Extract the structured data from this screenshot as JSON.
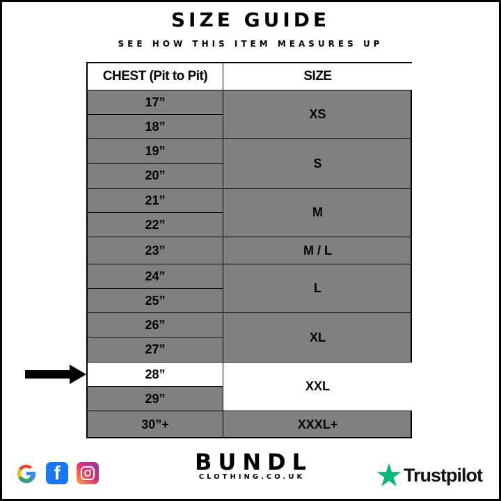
{
  "header": {
    "title": "SIZE GUIDE",
    "subtitle": "SEE HOW THIS ITEM MEASURES UP"
  },
  "table": {
    "columns": [
      "CHEST (Pit to Pit)",
      "SIZE"
    ],
    "chest": [
      "17”",
      "18”",
      "19”",
      "20”",
      "21”",
      "22”",
      "23”",
      "24”",
      "25”",
      "26”",
      "27”",
      "28”",
      "29”",
      "30”+"
    ],
    "sizes": [
      {
        "label": "XS",
        "rows": [
          0,
          1
        ]
      },
      {
        "label": "S",
        "rows": [
          2,
          3
        ]
      },
      {
        "label": "M",
        "rows": [
          4,
          5
        ]
      },
      {
        "label": "M / L",
        "rows": [
          6,
          6
        ]
      },
      {
        "label": "L",
        "rows": [
          7,
          8
        ]
      },
      {
        "label": "XL",
        "rows": [
          9,
          10
        ]
      },
      {
        "label": "XXL",
        "rows": [
          11,
          12
        ]
      },
      {
        "label": "XXXL+",
        "rows": [
          13,
          13
        ]
      }
    ],
    "highlighted_chest_row": 11,
    "highlighted_size": "XXL",
    "highlight_color": "#ffffff",
    "cell_color": "#808080"
  },
  "footer": {
    "social_icons": [
      "google-icon",
      "facebook-icon",
      "instagram-icon"
    ],
    "brand": {
      "name": "BUNDL",
      "url": "CLOTHING.CO.UK"
    },
    "trustpilot": {
      "label": "Trustpilot",
      "star_color": "#00b67a"
    }
  }
}
